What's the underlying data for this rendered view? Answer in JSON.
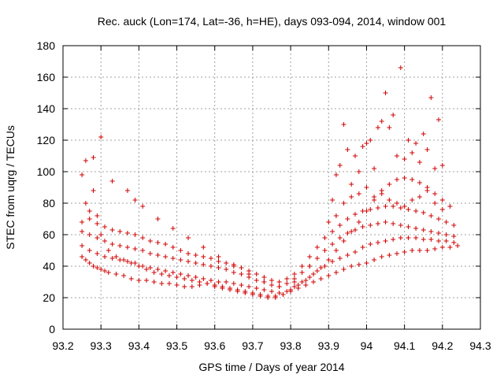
{
  "chart_data": {
    "type": "scatter",
    "title": "Rec. auck (Lon=174, Lat=-36, h=HE), days 093-094, 2014, window 001",
    "xlabel": "GPS time / Days of year 2014",
    "ylabel": "STEC from uqrg / TECUs",
    "xlim": [
      93.2,
      94.3
    ],
    "ylim": [
      0,
      180
    ],
    "xticks": [
      "93.2",
      "93.3",
      "93.4",
      "93.5",
      "93.6",
      "93.7",
      "93.8",
      "93.9",
      "94",
      "94.1",
      "94.2",
      "94.3"
    ],
    "yticks": [
      "0",
      "20",
      "40",
      "60",
      "80",
      "100",
      "120",
      "140",
      "160",
      "180"
    ],
    "grid": true,
    "marker": "plus",
    "color": "#d00000",
    "series": [
      {
        "x": [
          93.25,
          93.26,
          93.27,
          93.28,
          93.29,
          93.3,
          93.31,
          93.32,
          93.34,
          93.36,
          93.38,
          93.4,
          93.42,
          93.44,
          93.46,
          93.48,
          93.5,
          93.52,
          93.54,
          93.56,
          93.58,
          93.6,
          93.62,
          93.64,
          93.66,
          93.68,
          93.7,
          93.72,
          93.74,
          93.76,
          93.78,
          93.8,
          93.82,
          93.84,
          93.86,
          93.88,
          93.9,
          93.92,
          93.94,
          93.96,
          93.98,
          94.0,
          94.02,
          94.04,
          94.06,
          94.08,
          94.1,
          94.12,
          94.14,
          94.16,
          94.18,
          94.2,
          94.22,
          94.24
        ],
        "y": [
          46,
          44,
          42,
          40,
          39,
          38,
          37,
          36,
          35,
          34,
          32,
          31,
          31,
          30,
          29,
          29,
          28,
          27,
          27,
          28,
          29,
          27,
          26,
          25,
          24,
          23,
          22,
          21,
          20,
          20,
          22,
          24,
          26,
          28,
          30,
          32,
          34,
          36,
          38,
          40,
          41,
          42,
          44,
          46,
          47,
          48,
          49,
          50,
          50,
          50,
          51,
          52,
          52,
          53
        ]
      },
      {
        "x": [
          93.25,
          93.27,
          93.29,
          93.31,
          93.33,
          93.35,
          93.37,
          93.39,
          93.41,
          93.43,
          93.45,
          93.47,
          93.49,
          93.51,
          93.53,
          93.55,
          93.57,
          93.59,
          93.61,
          93.63,
          93.65,
          93.67,
          93.69,
          93.71,
          93.73,
          93.75,
          93.77,
          93.79,
          93.81,
          93.83,
          93.85,
          93.87,
          93.89,
          93.91,
          93.93,
          93.95,
          93.97,
          93.99,
          94.01,
          94.03,
          94.05,
          94.07,
          94.09,
          94.11,
          94.13,
          94.15,
          94.17,
          94.19,
          94.21,
          94.23
        ],
        "y": [
          53,
          50,
          48,
          46,
          45,
          44,
          43,
          42,
          40,
          39,
          38,
          37,
          36,
          35,
          34,
          33,
          32,
          31,
          30,
          30,
          29,
          28,
          27,
          26,
          25,
          24,
          23,
          24,
          27,
          30,
          33,
          37,
          40,
          43,
          45,
          47,
          49,
          52,
          54,
          55,
          56,
          57,
          58,
          58,
          58,
          57,
          57,
          56,
          56,
          55
        ]
      },
      {
        "x": [
          93.25,
          93.27,
          93.29,
          93.31,
          93.33,
          93.35,
          93.37,
          93.39,
          93.41,
          93.43,
          93.45,
          93.47,
          93.49,
          93.51,
          93.53,
          93.55,
          93.57,
          93.59,
          93.61,
          93.63,
          93.65,
          93.67,
          93.69,
          93.71,
          93.73,
          93.75,
          93.77,
          93.79,
          93.81,
          93.83,
          93.85,
          93.87,
          93.89,
          93.91,
          93.93,
          93.95,
          93.97,
          93.99,
          94.01,
          94.03,
          94.05,
          94.07,
          94.09,
          94.11,
          94.13,
          94.15,
          94.17,
          94.19,
          94.21,
          94.23
        ],
        "y": [
          62,
          60,
          58,
          56,
          54,
          53,
          52,
          51,
          50,
          48,
          47,
          46,
          45,
          44,
          43,
          42,
          41,
          40,
          39,
          38,
          36,
          35,
          33,
          31,
          30,
          28,
          27,
          29,
          32,
          36,
          40,
          45,
          50,
          54,
          58,
          61,
          63,
          65,
          66,
          67,
          68,
          67,
          66,
          65,
          64,
          63,
          62,
          61,
          60,
          59
        ]
      },
      {
        "x": [
          93.25,
          93.27,
          93.29,
          93.31,
          93.33,
          93.35,
          93.37,
          93.39,
          93.41,
          93.43,
          93.45,
          93.47,
          93.49,
          93.51,
          93.53,
          93.55,
          93.57,
          93.59,
          93.61,
          93.63,
          93.65,
          93.67,
          93.69,
          93.71,
          93.73,
          93.75,
          93.77,
          93.79,
          93.81,
          93.83,
          93.85,
          93.87,
          93.89,
          93.91,
          93.93,
          93.95,
          93.97,
          93.99,
          94.01,
          94.03,
          94.05,
          94.07,
          94.09,
          94.11,
          94.13,
          94.15,
          94.17,
          94.19,
          94.21,
          94.23
        ],
        "y": [
          68,
          70,
          67,
          65,
          63,
          62,
          61,
          60,
          58,
          56,
          55,
          54,
          52,
          50,
          48,
          47,
          46,
          45,
          43,
          42,
          41,
          39,
          37,
          35,
          33,
          31,
          30,
          32,
          35,
          40,
          46,
          52,
          58,
          62,
          66,
          70,
          73,
          75,
          76,
          77,
          78,
          78,
          77,
          76,
          75,
          74,
          72,
          70,
          68,
          66
        ]
      },
      {
        "x": [
          93.25,
          93.26,
          93.27,
          93.28,
          93.29,
          93.3,
          93.32,
          93.34,
          93.36,
          93.38,
          93.4,
          93.42,
          93.44,
          93.46,
          93.48,
          93.5,
          93.52,
          93.54,
          93.56,
          93.58,
          93.6,
          93.62,
          93.64,
          93.66,
          93.68,
          93.7,
          93.72,
          93.74,
          93.76,
          93.78,
          93.8,
          93.82,
          93.84,
          93.86,
          93.88,
          93.9,
          93.92,
          93.94,
          93.96,
          93.98,
          94.0,
          94.02,
          94.04,
          94.06,
          94.08,
          94.1,
          94.12,
          94.14,
          94.16,
          94.18,
          94.2,
          94.22
        ],
        "y": [
          98,
          80,
          75,
          88,
          72,
          60,
          50,
          46,
          44,
          42,
          40,
          38,
          36,
          35,
          34,
          33,
          32,
          31,
          30,
          29,
          28,
          27,
          26,
          25,
          24,
          23,
          22,
          21,
          21,
          22,
          25,
          28,
          31,
          35,
          39,
          44,
          50,
          56,
          62,
          68,
          75,
          82,
          88,
          92,
          95,
          96,
          95,
          93,
          90,
          86,
          82,
          78
        ]
      },
      {
        "x": [
          93.26,
          93.28,
          93.3,
          93.33,
          93.37,
          93.39,
          93.41,
          93.45,
          93.49,
          93.53,
          93.57,
          93.61,
          93.65,
          93.69,
          93.73,
          93.77,
          93.81,
          93.85,
          93.89,
          93.91,
          93.93,
          93.95,
          93.97,
          93.99,
          94.01,
          94.03,
          94.05,
          94.07,
          94.09,
          94.11,
          94.13,
          94.15,
          94.17,
          94.19
        ],
        "y": [
          107,
          109,
          122,
          94,
          88,
          82,
          78,
          70,
          64,
          58,
          52,
          46,
          40,
          35,
          30,
          27,
          30,
          40,
          58,
          82,
          104,
          114,
          110,
          116,
          120,
          128,
          150,
          136,
          166,
          120,
          118,
          124,
          147,
          133
        ]
      },
      {
        "x": [
          93.92,
          93.94,
          93.96,
          93.98,
          94.0,
          94.02,
          94.04,
          94.06,
          94.08,
          94.1,
          94.12,
          94.14,
          94.16,
          94.18,
          94.2
        ],
        "y": [
          98,
          130,
          92,
          100,
          118,
          102,
          132,
          128,
          110,
          108,
          112,
          106,
          114,
          102,
          104
        ]
      },
      {
        "x": [
          93.9,
          93.92,
          93.94,
          93.96,
          93.98,
          94.0,
          94.02,
          94.04,
          94.06,
          94.08,
          94.1,
          94.12,
          94.14,
          94.16,
          94.18,
          94.2
        ],
        "y": [
          68,
          72,
          80,
          84,
          86,
          90,
          84,
          86,
          82,
          80,
          78,
          82,
          84,
          88,
          80,
          76
        ]
      }
    ]
  }
}
